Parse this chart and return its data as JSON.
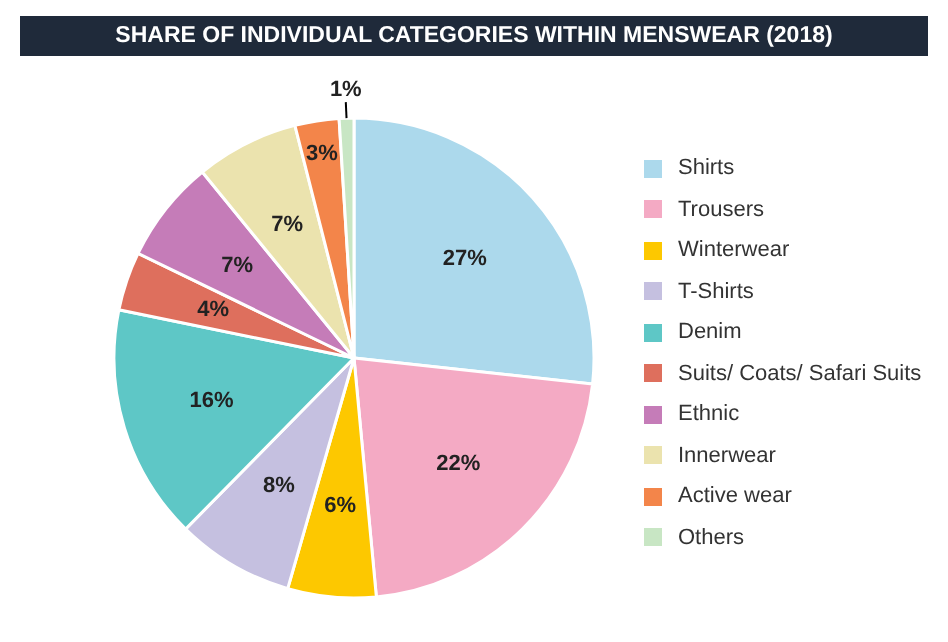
{
  "chart_data": {
    "type": "pie",
    "title": "SHARE OF INDIVIDUAL CATEGORIES WITHIN MENSWEAR (2018)",
    "categories": [
      "Shirts",
      "Trousers",
      "Winterwear",
      "T-Shirts",
      "Denim",
      "Suits/ Coats/ Safari Suits",
      "Ethnic",
      "Innerwear",
      "Active wear",
      "Others"
    ],
    "values": [
      27,
      22,
      6,
      8,
      16,
      4,
      7,
      7,
      3,
      1
    ],
    "value_labels": [
      "27%",
      "22%",
      "6%",
      "8%",
      "16%",
      "4%",
      "7%",
      "7%",
      "3%",
      "1%"
    ],
    "colors": [
      "#acd9ec",
      "#f4aac4",
      "#fdc800",
      "#c5c0e0",
      "#5ec7c6",
      "#de6f5d",
      "#c57cb8",
      "#ebe3ae",
      "#f3854a",
      "#c8e6c4"
    ],
    "legend": "right"
  }
}
